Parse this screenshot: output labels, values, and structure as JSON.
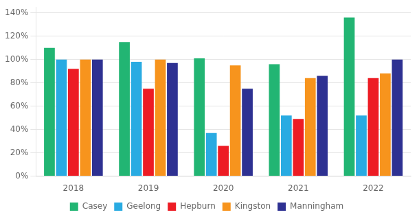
{
  "chart_data": {
    "type": "bar",
    "categories": [
      "2018",
      "2019",
      "2020",
      "2021",
      "2022"
    ],
    "series": [
      {
        "name": "Casey",
        "color": "#22b573",
        "values": [
          1.1,
          1.15,
          1.01,
          0.96,
          1.36
        ]
      },
      {
        "name": "Geelong",
        "color": "#29abe2",
        "values": [
          1.0,
          0.98,
          0.37,
          0.52,
          0.52
        ]
      },
      {
        "name": "Hepburn",
        "color": "#ed1c24",
        "values": [
          0.92,
          0.75,
          0.26,
          0.49,
          0.84
        ]
      },
      {
        "name": "Kingston",
        "color": "#f7941d",
        "values": [
          1.0,
          1.0,
          0.95,
          0.84,
          0.88
        ]
      },
      {
        "name": "Manningham",
        "color": "#2e3192",
        "values": [
          1.0,
          0.97,
          0.75,
          0.86,
          1.0
        ]
      }
    ],
    "ylim": [
      0,
      1.45
    ],
    "yticks": [
      {
        "value": 0.0,
        "label": "0%"
      },
      {
        "value": 0.2,
        "label": "20%"
      },
      {
        "value": 0.4,
        "label": "40%"
      },
      {
        "value": 0.6,
        "label": "60%"
      },
      {
        "value": 0.8,
        "label": "80%"
      },
      {
        "value": 1.0,
        "label": "100%"
      },
      {
        "value": 1.2,
        "label": "120%"
      },
      {
        "value": 1.4,
        "label": "140%"
      }
    ],
    "grid": true,
    "legend": "bottom"
  }
}
